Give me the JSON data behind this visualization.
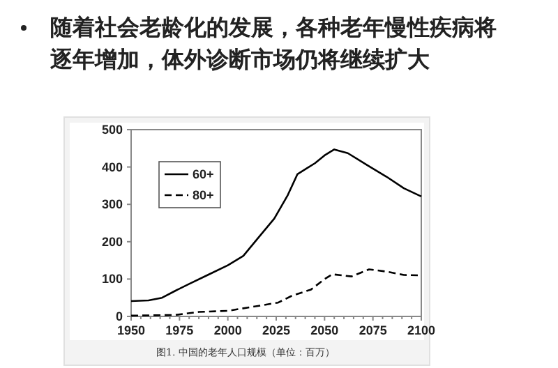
{
  "chart_data": {
    "type": "line",
    "title": "随着社会老龄化的发展，各种老年慢性疾病将逐年增加，体外诊断市场仍将继续扩大",
    "annotations": [
      "图1. 中国的老年人口规模（单位：百万）"
    ],
    "xlim": [
      1950,
      2100
    ],
    "ylim": [
      0,
      500
    ],
    "xticks": [
      1950,
      {
        "value": 1955,
        "label": null
      },
      {
        "value": 1960,
        "label": null
      },
      {
        "value": 1965,
        "label": null
      },
      {
        "value": 1970,
        "label": null
      },
      1975,
      {
        "value": 1980,
        "label": null
      },
      {
        "value": 1985,
        "label": null
      },
      {
        "value": 1990,
        "label": null
      },
      {
        "value": 1995,
        "label": null
      },
      2000,
      {
        "value": 2005,
        "label": null
      },
      {
        "value": 2010,
        "label": null
      },
      {
        "value": 2015,
        "label": null
      },
      {
        "value": 2020,
        "label": null
      },
      2025,
      {
        "value": 2030,
        "label": null
      },
      {
        "value": 2035,
        "label": null
      },
      {
        "value": 2040,
        "label": null
      },
      {
        "value": 2045,
        "label": null
      },
      2050,
      {
        "value": 2055,
        "label": null
      },
      {
        "value": 2060,
        "label": null
      },
      {
        "value": 2065,
        "label": null
      },
      {
        "value": 2070,
        "label": null
      },
      2075,
      {
        "value": 2080,
        "label": null
      },
      {
        "value": 2085,
        "label": null
      },
      {
        "value": 2090,
        "label": null
      },
      {
        "value": 2095,
        "label": null
      },
      2100
    ],
    "yticks": [
      0,
      100,
      200,
      300,
      400,
      500
    ],
    "legend": "top left",
    "grid": false,
    "series": [
      {
        "name": "60+",
        "color": "#000000",
        "line_style": "solid",
        "x": [
          1950,
          1959,
          1966,
          1973,
          1980,
          1990,
          2000,
          2008,
          2015,
          2024,
          2031,
          2036,
          2041,
          2045,
          2050,
          2055,
          2062,
          2072,
          2082,
          2091,
          2100
        ],
        "values": [
          41,
          43,
          50,
          69,
          87,
          112,
          137,
          162,
          206,
          262,
          325,
          381,
          397,
          410,
          431,
          447,
          437,
          405,
          374,
          343,
          321
        ]
      },
      {
        "name": "80+",
        "color": "#000000",
        "line_style": "dashed",
        "x": [
          1950,
          1973,
          1985,
          2000,
          2012,
          2026,
          2033,
          2043,
          2050,
          2054,
          2064,
          2073,
          2082,
          2091,
          2100
        ],
        "values": [
          2,
          4,
          12,
          15,
          25,
          37,
          55,
          72,
          100,
          113,
          107,
          126,
          120,
          111,
          110
        ]
      }
    ]
  }
}
